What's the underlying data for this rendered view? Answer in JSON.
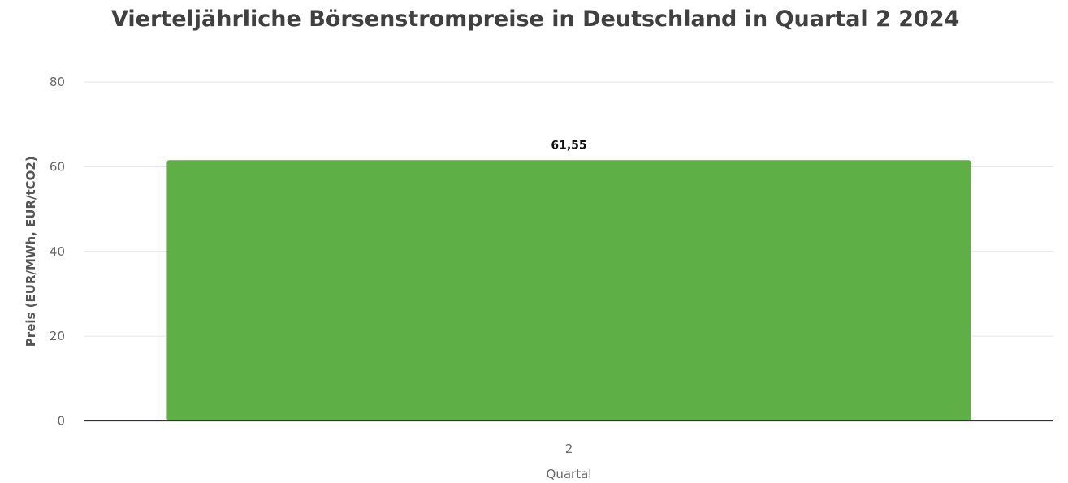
{
  "chart_data": {
    "type": "bar",
    "title": "Vierteljährliche Börsenstrompreise in Deutschland in Quartal 2 2024",
    "xlabel": "Quartal",
    "ylabel": "Preis (EUR/MWh, EUR/tCO2)",
    "categories": [
      "2"
    ],
    "values": [
      61.55
    ],
    "data_labels": [
      "61,55"
    ],
    "y_ticks": [
      "0",
      "20",
      "40",
      "60",
      "80"
    ],
    "ylim": [
      0,
      80
    ],
    "grid": true,
    "legend": false,
    "bar_color": "#5daf46",
    "grid_color": "#e6e6e6",
    "axis_color": "#333333"
  }
}
